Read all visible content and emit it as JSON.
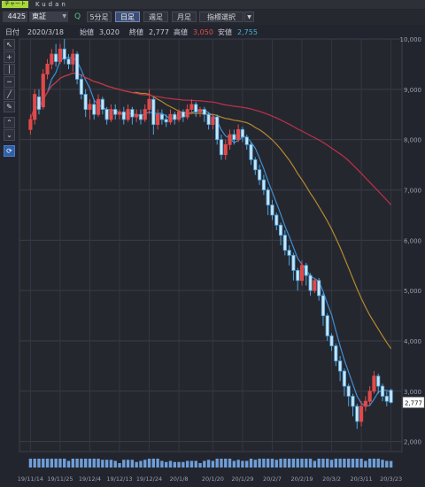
{
  "header": {
    "tag": "チャート",
    "app_name": "Kudan"
  },
  "toolbar": {
    "code": "4425",
    "market": "東証",
    "timeframes": [
      "5分足",
      "日足",
      "週足",
      "月足"
    ],
    "active_timeframe": "日足",
    "indicator_select": "指標選択"
  },
  "info": {
    "date_label": "日付",
    "date": "2020/3/18",
    "open_label": "始値",
    "open": "3,020",
    "close_label": "終値",
    "close": "2,777",
    "high_label": "高値",
    "high": "3,050",
    "low_label": "安値",
    "low": "2,755"
  },
  "colors": {
    "up": "#e04a4a",
    "down": "#4ea6e0",
    "ma_short": "#3f8fd6",
    "ma_mid": "#b58a2e",
    "ma_long": "#c0304a",
    "price_tag": "#ffffff"
  },
  "chart_data": {
    "type": "candlestick",
    "y_range": [
      1800,
      10000
    ],
    "y_ticks": [
      "10,000",
      "9,000",
      "8,000",
      "7,000",
      "6,000",
      "5,000",
      "4,000",
      "3,000",
      "2,000"
    ],
    "x_labels": [
      "19/11/14",
      "19/11/25",
      "19/12/4",
      "19/12/13",
      "19/12/24",
      "20/1/8",
      "20/1/20",
      "20/1/29",
      "20/2/7",
      "20/2/19",
      "20/3/2",
      "20/3/11",
      "20/3/23"
    ],
    "last_price": "2,777",
    "candles": [
      [
        8200,
        8400,
        8100,
        8500
      ],
      [
        8400,
        8900,
        8300,
        9000
      ],
      [
        8850,
        8600,
        8500,
        9000
      ],
      [
        8650,
        9300,
        8600,
        9400
      ],
      [
        9300,
        9500,
        9200,
        9600
      ],
      [
        9500,
        9700,
        9400,
        9800
      ],
      [
        9700,
        9550,
        9450,
        9900
      ],
      [
        9550,
        9800,
        9500,
        9900
      ],
      [
        9800,
        9600,
        9500,
        10000
      ],
      [
        9600,
        9500,
        9400,
        9700
      ],
      [
        9500,
        9700,
        9350,
        9800
      ],
      [
        9700,
        9200,
        9100,
        9750
      ],
      [
        9200,
        8900,
        8800,
        9300
      ],
      [
        8900,
        8600,
        8450,
        9000
      ],
      [
        8600,
        8700,
        8400,
        8800
      ],
      [
        8700,
        8500,
        8400,
        8800
      ],
      [
        8500,
        8800,
        8450,
        8900
      ],
      [
        8800,
        8600,
        8500,
        8850
      ],
      [
        8600,
        8400,
        8300,
        8650
      ],
      [
        8400,
        8600,
        8350,
        8700
      ],
      [
        8600,
        8500,
        8400,
        8700
      ],
      [
        8500,
        8550,
        8400,
        8600
      ],
      [
        8550,
        8400,
        8300,
        8650
      ],
      [
        8400,
        8600,
        8350,
        8700
      ],
      [
        8600,
        8450,
        8300,
        8650
      ],
      [
        8450,
        8500,
        8350,
        8600
      ],
      [
        8500,
        8400,
        8300,
        8600
      ],
      [
        8400,
        8600,
        8350,
        8700
      ],
      [
        8600,
        8800,
        8500,
        9000
      ],
      [
        8800,
        8300,
        8100,
        8850
      ],
      [
        8300,
        8500,
        8200,
        8600
      ],
      [
        8500,
        8400,
        8300,
        8600
      ],
      [
        8400,
        8350,
        8250,
        8500
      ],
      [
        8350,
        8500,
        8300,
        8600
      ],
      [
        8500,
        8400,
        8300,
        8550
      ],
      [
        8400,
        8550,
        8350,
        8600
      ],
      [
        8550,
        8450,
        8350,
        8600
      ],
      [
        8450,
        8600,
        8400,
        8700
      ],
      [
        8600,
        8700,
        8500,
        8800
      ],
      [
        8700,
        8550,
        8450,
        8750
      ],
      [
        8550,
        8600,
        8450,
        8650
      ],
      [
        8600,
        8500,
        8350,
        8650
      ],
      [
        8500,
        8300,
        8200,
        8550
      ],
      [
        8300,
        8450,
        8200,
        8500
      ],
      [
        8450,
        8000,
        7900,
        8500
      ],
      [
        8000,
        7700,
        7600,
        8100
      ],
      [
        7700,
        7900,
        7600,
        8000
      ],
      [
        7900,
        8100,
        7800,
        8200
      ],
      [
        8100,
        8000,
        7900,
        8200
      ],
      [
        8000,
        8200,
        7950,
        8300
      ],
      [
        8200,
        8050,
        7950,
        8250
      ],
      [
        8050,
        7900,
        7800,
        8100
      ],
      [
        7900,
        7600,
        7500,
        7950
      ],
      [
        7600,
        7400,
        7300,
        7650
      ],
      [
        7400,
        7200,
        7100,
        7500
      ],
      [
        7200,
        7000,
        6900,
        7300
      ],
      [
        7000,
        6700,
        6500,
        7050
      ],
      [
        6700,
        6500,
        6400,
        6800
      ],
      [
        6500,
        6300,
        6200,
        6550
      ],
      [
        6300,
        6100,
        5900,
        6350
      ],
      [
        6100,
        5800,
        5700,
        6200
      ],
      [
        5800,
        5700,
        5500,
        5900
      ],
      [
        5700,
        5400,
        5200,
        5750
      ],
      [
        5400,
        5200,
        5000,
        5450
      ],
      [
        5200,
        5500,
        5100,
        5600
      ],
      [
        5500,
        5300,
        5100,
        5550
      ],
      [
        5300,
        5000,
        4900,
        5350
      ],
      [
        5000,
        5200,
        4950,
        5250
      ],
      [
        5200,
        4900,
        4800,
        5250
      ],
      [
        4900,
        4500,
        4300,
        4950
      ],
      [
        4500,
        4100,
        4000,
        4550
      ],
      [
        4100,
        3900,
        3800,
        4150
      ],
      [
        3900,
        3600,
        3500,
        3950
      ],
      [
        3600,
        3400,
        3200,
        3700
      ],
      [
        3400,
        3100,
        2900,
        3450
      ],
      [
        3100,
        2900,
        2700,
        3150
      ],
      [
        2900,
        2700,
        2500,
        2950
      ],
      [
        2700,
        2400,
        2250,
        2750
      ],
      [
        2400,
        2700,
        2300,
        2800
      ],
      [
        2700,
        2800,
        2600,
        2900
      ],
      [
        2800,
        3000,
        2700,
        3100
      ],
      [
        3000,
        3300,
        2950,
        3400
      ],
      [
        3300,
        3100,
        2950,
        3350
      ],
      [
        3100,
        2900,
        2800,
        3150
      ],
      [
        2900,
        2800,
        2700,
        3000
      ],
      [
        3020,
        2777,
        2755,
        3050
      ]
    ]
  }
}
